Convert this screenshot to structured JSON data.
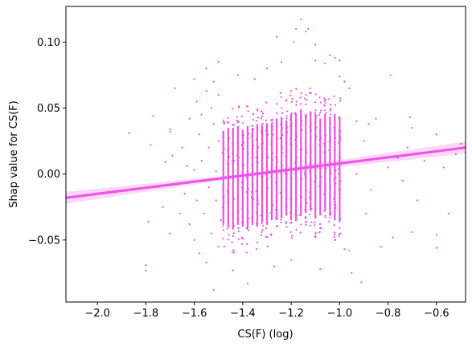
{
  "chart_data": {
    "type": "scatter",
    "xlabel": "CS(F) (log)",
    "ylabel": "Shap value for CS(F)",
    "xlim": [
      -2.13,
      -0.48
    ],
    "ylim": [
      -0.097,
      0.127
    ],
    "x_ticks": [
      -2.0,
      -1.8,
      -1.6,
      -1.4,
      -1.2,
      -1.0,
      -0.8,
      -0.6
    ],
    "x_tick_labels": [
      "−2.0",
      "−1.8",
      "−1.6",
      "−1.4",
      "−1.2",
      "−1.0",
      "−0.8",
      "−0.6"
    ],
    "y_ticks": [
      -0.05,
      0.0,
      0.05,
      0.1
    ],
    "y_tick_labels": [
      "−0.05",
      "0.00",
      "0.05",
      "0.10"
    ],
    "grid": false,
    "legend": "none",
    "point_color": "#f050e8",
    "line_color": "#f050e8",
    "band_color": "#f9c6f5",
    "regression_line": {
      "x": [
        -2.13,
        -0.48
      ],
      "y": [
        -0.018,
        0.02
      ]
    },
    "dense_columns": [
      {
        "x": -1.48,
        "y_range": [
          -0.055,
          0.047
        ]
      },
      {
        "x": -1.46,
        "y_range": [
          -0.058,
          0.049
        ]
      },
      {
        "x": -1.44,
        "y_range": [
          -0.06,
          0.05
        ]
      },
      {
        "x": -1.42,
        "y_range": [
          -0.055,
          0.052
        ]
      },
      {
        "x": -1.4,
        "y_range": [
          -0.057,
          0.048
        ]
      },
      {
        "x": -1.38,
        "y_range": [
          -0.06,
          0.052
        ]
      },
      {
        "x": -1.36,
        "y_range": [
          -0.055,
          0.05
        ]
      },
      {
        "x": -1.34,
        "y_range": [
          -0.057,
          0.054
        ]
      },
      {
        "x": -1.32,
        "y_range": [
          -0.052,
          0.052
        ]
      },
      {
        "x": -1.3,
        "y_range": [
          -0.055,
          0.055
        ]
      },
      {
        "x": -1.28,
        "y_range": [
          -0.05,
          0.055
        ]
      },
      {
        "x": -1.26,
        "y_range": [
          -0.05,
          0.06
        ]
      },
      {
        "x": -1.24,
        "y_range": [
          -0.048,
          0.062
        ]
      },
      {
        "x": -1.22,
        "y_range": [
          -0.045,
          0.058
        ]
      },
      {
        "x": -1.2,
        "y_range": [
          -0.05,
          0.065
        ]
      },
      {
        "x": -1.18,
        "y_range": [
          -0.05,
          0.065
        ]
      },
      {
        "x": -1.16,
        "y_range": [
          -0.045,
          0.07
        ]
      },
      {
        "x": -1.14,
        "y_range": [
          -0.042,
          0.065
        ]
      },
      {
        "x": -1.12,
        "y_range": [
          -0.04,
          0.068
        ]
      },
      {
        "x": -1.1,
        "y_range": [
          -0.048,
          0.065
        ]
      },
      {
        "x": -1.08,
        "y_range": [
          -0.045,
          0.06
        ]
      },
      {
        "x": -1.06,
        "y_range": [
          -0.04,
          0.065
        ]
      },
      {
        "x": -1.04,
        "y_range": [
          -0.045,
          0.062
        ]
      },
      {
        "x": -1.02,
        "y_range": [
          -0.05,
          0.065
        ]
      },
      {
        "x": -1.0,
        "y_range": [
          -0.052,
          0.062
        ]
      }
    ],
    "points": [
      [
        -1.87,
        0.031
      ],
      [
        -1.8,
        -0.069
      ],
      [
        -1.8,
        -0.073
      ],
      [
        -1.77,
        0.044
      ],
      [
        -1.78,
        0.022
      ],
      [
        -1.79,
        -0.036
      ],
      [
        -1.75,
        -0.01
      ],
      [
        -1.73,
        -0.025
      ],
      [
        -1.72,
        0.009
      ],
      [
        -1.7,
        0.034
      ],
      [
        -1.7,
        0.032
      ],
      [
        -1.7,
        -0.045
      ],
      [
        -1.69,
        0.014
      ],
      [
        -1.68,
        0.065
      ],
      [
        -1.67,
        -0.008
      ],
      [
        -1.66,
        -0.03
      ],
      [
        -1.65,
        0.02
      ],
      [
        -1.64,
        -0.015
      ],
      [
        -1.63,
        0.006
      ],
      [
        -1.62,
        -0.038
      ],
      [
        -1.62,
        0.042
      ],
      [
        -1.6,
        0.072
      ],
      [
        -1.6,
        0.003
      ],
      [
        -1.6,
        -0.05
      ],
      [
        -1.59,
        0.055
      ],
      [
        -1.59,
        -0.02
      ],
      [
        -1.58,
        0.03
      ],
      [
        -1.58,
        -0.06
      ],
      [
        -1.57,
        0.01
      ],
      [
        -1.57,
        0.045
      ],
      [
        -1.56,
        -0.03
      ],
      [
        -1.55,
        0.08
      ],
      [
        -1.55,
        0.063
      ],
      [
        -1.55,
        -0.067
      ],
      [
        -1.54,
        0.02
      ],
      [
        -1.54,
        -0.01
      ],
      [
        -1.53,
        0.05
      ],
      [
        -1.53,
        -0.045
      ],
      [
        -1.52,
        0.038
      ],
      [
        -1.52,
        0.07
      ],
      [
        -1.51,
        -0.02
      ],
      [
        -1.51,
        0.002
      ],
      [
        -1.5,
        0.06
      ],
      [
        -1.5,
        -0.055
      ],
      [
        -1.5,
        0.025
      ],
      [
        -1.49,
        -0.035
      ],
      [
        -1.52,
        -0.088
      ],
      [
        -1.5,
        0.085
      ],
      [
        -1.44,
        -0.073
      ],
      [
        -1.42,
        0.075
      ],
      [
        -1.38,
        -0.083
      ],
      [
        -1.35,
        0.072
      ],
      [
        -1.3,
        0.08
      ],
      [
        -1.27,
        -0.07
      ],
      [
        -1.26,
        0.104
      ],
      [
        -1.24,
        0.085
      ],
      [
        -1.2,
        -0.065
      ],
      [
        -1.19,
        0.1
      ],
      [
        -1.18,
        0.11
      ],
      [
        -1.16,
        0.117
      ],
      [
        -1.14,
        0.108
      ],
      [
        -1.13,
        0.11
      ],
      [
        -1.1,
        0.086
      ],
      [
        -1.1,
        0.098
      ],
      [
        -1.08,
        -0.072
      ],
      [
        -1.06,
        0.084
      ],
      [
        -1.04,
        0.09
      ],
      [
        -1.02,
        0.088
      ],
      [
        -1.0,
        0.086
      ],
      [
        -1.0,
        0.074
      ],
      [
        -0.98,
        -0.057
      ],
      [
        -0.98,
        0.07
      ],
      [
        -0.96,
        -0.058
      ],
      [
        -0.96,
        0.065
      ],
      [
        -0.95,
        -0.075
      ],
      [
        -0.93,
        0.04
      ],
      [
        -0.93,
        0.0
      ],
      [
        -0.91,
        -0.082
      ],
      [
        -0.9,
        0.025
      ],
      [
        -0.89,
        -0.03
      ],
      [
        -0.88,
        0.038
      ],
      [
        -0.87,
        -0.012
      ],
      [
        -0.85,
        0.042
      ],
      [
        -0.83,
        -0.055
      ],
      [
        -0.8,
        0.005
      ],
      [
        -0.79,
        0.075
      ],
      [
        -0.78,
        -0.048
      ],
      [
        -0.76,
        0.012
      ],
      [
        -0.74,
        -0.005
      ],
      [
        -0.72,
        0.02
      ],
      [
        -0.71,
        0.043
      ],
      [
        -0.7,
        -0.044
      ],
      [
        -0.7,
        0.035
      ],
      [
        -0.68,
        -0.02
      ],
      [
        -0.65,
        0.01
      ],
      [
        -0.6,
        0.03
      ],
      [
        -0.6,
        -0.046
      ],
      [
        -0.6,
        -0.056
      ],
      [
        -0.57,
        0.005
      ],
      [
        -0.55,
        -0.03
      ],
      [
        -0.52,
        0.015
      ],
      [
        -0.5,
        0.023
      ]
    ]
  }
}
